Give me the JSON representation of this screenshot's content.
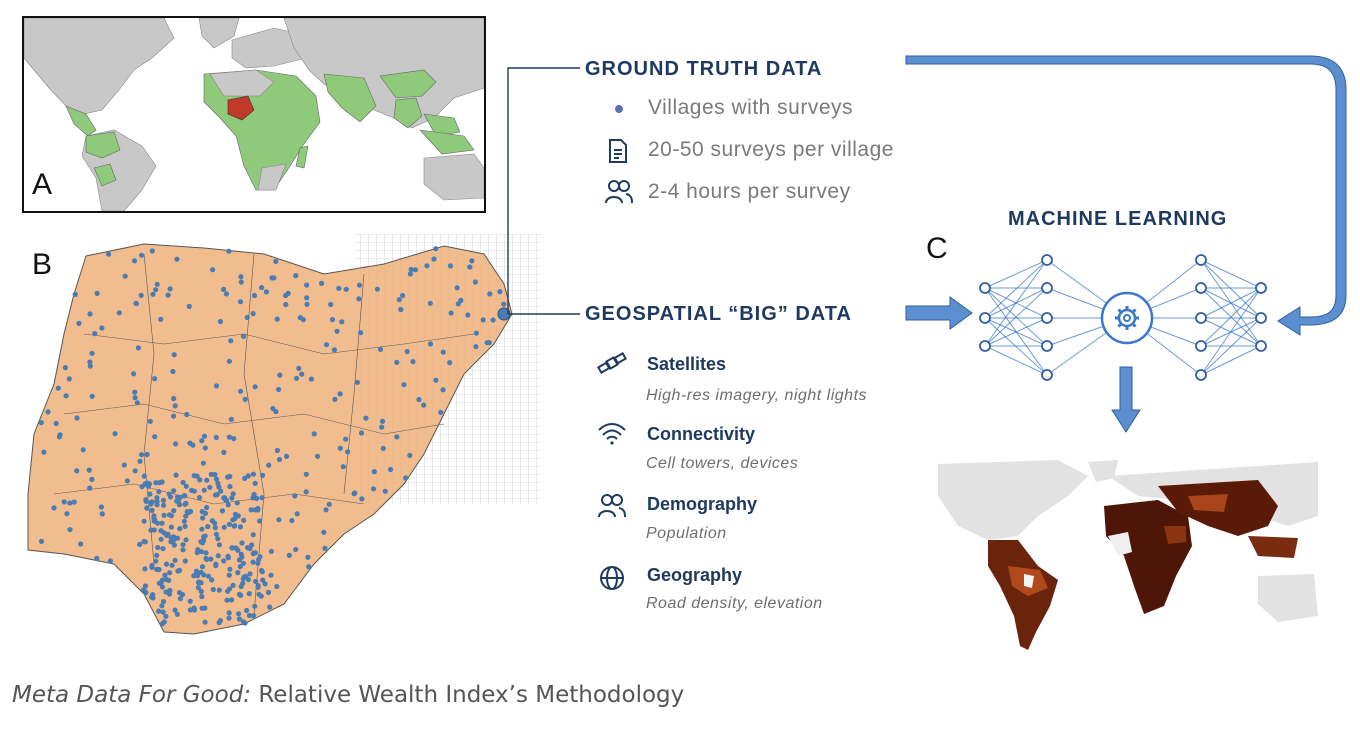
{
  "panels": {
    "a": "A",
    "b": "B",
    "c": "C"
  },
  "ground_truth": {
    "title": "GROUND TRUTH DATA",
    "items": [
      {
        "icon": "village-dot-icon",
        "label": "Villages with surveys"
      },
      {
        "icon": "document-icon",
        "label": "20-50 surveys per village"
      },
      {
        "icon": "people-icon",
        "label": "2-4 hours per survey"
      }
    ]
  },
  "geospatial": {
    "title": "GEOSPATIAL “BIG” DATA",
    "items": [
      {
        "icon": "satellite-icon",
        "title": "Satellites",
        "subtitle": "High-res imagery, night lights"
      },
      {
        "icon": "wifi-icon",
        "title": "Connectivity",
        "subtitle": "Cell towers, devices"
      },
      {
        "icon": "people-icon",
        "title": "Demography",
        "subtitle": "Population"
      },
      {
        "icon": "globe-icon",
        "title": "Geography",
        "subtitle": "Road density, elevation"
      }
    ]
  },
  "machine_learning": {
    "title": "MACHINE LEARNING",
    "center_icon": "gear-icon"
  },
  "caption": {
    "emphasis": "Meta Data For Good:",
    "text": " Relative Wealth Index’s Methodology"
  },
  "colors": {
    "navy": "#1f3a60",
    "arrow_blue": "#5b8fd0",
    "node_blue": "#3a78c8",
    "survey_dot": "#4a7cb4",
    "nigeria_fill": "#f0b27a",
    "highlight_country": "#c0392b",
    "survey_country": "#8fc97a",
    "land_gray": "#c8c8c8",
    "wealth_dark": "#5a1a08"
  }
}
